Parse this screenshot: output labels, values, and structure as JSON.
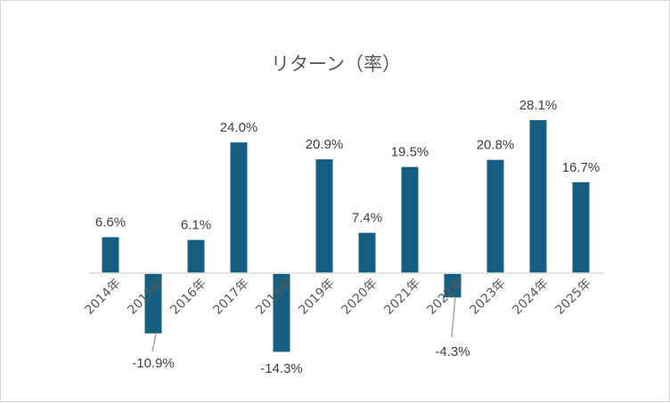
{
  "chart_data": {
    "type": "bar",
    "title": "リターン（率）",
    "xlabel": "",
    "ylabel": "",
    "categories": [
      "2014年",
      "2015年",
      "2016年",
      "2017年",
      "2018年",
      "2019年",
      "2020年",
      "2021年",
      "2022年",
      "2023年",
      "2024年",
      "2025年"
    ],
    "values": [
      6.6,
      -10.9,
      6.1,
      24.0,
      -14.3,
      20.9,
      7.4,
      19.5,
      -4.3,
      20.8,
      28.1,
      16.7
    ],
    "data_labels": [
      "6.6%",
      "-10.9%",
      "6.1%",
      "24.0%",
      "-14.3%",
      "20.9%",
      "7.4%",
      "19.5%",
      "-4.3%",
      "20.8%",
      "28.1%",
      "16.7%"
    ],
    "grid": false,
    "legend": "none",
    "bar_color": "#156082",
    "axis_color": "#d9d9d9"
  }
}
